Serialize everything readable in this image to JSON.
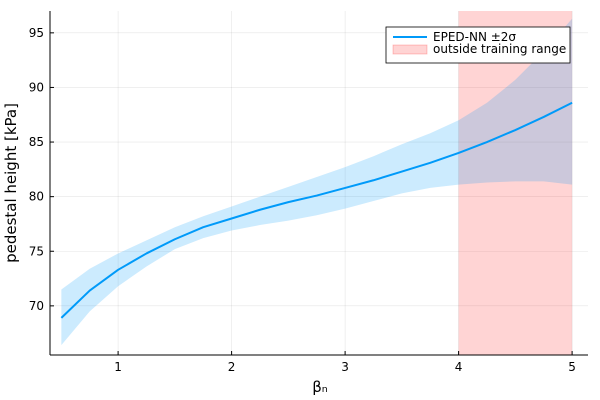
{
  "chart_data": {
    "type": "line",
    "title": "",
    "xlabel": "βₙ",
    "ylabel": "pedestal height [kPa]",
    "xlim": [
      0.4,
      5.14
    ],
    "ylim": [
      65.5,
      97.0
    ],
    "x_ticks": [
      1,
      2,
      3,
      4,
      5
    ],
    "y_ticks": [
      70,
      75,
      80,
      85,
      90,
      95
    ],
    "grid": true,
    "legend_position": "top-right",
    "series": [
      {
        "name": "EPED-NN ±2σ",
        "color": "#009af9",
        "band_color": "#009af9",
        "x": [
          0.5,
          0.75,
          1.0,
          1.25,
          1.5,
          1.75,
          2.0,
          2.25,
          2.5,
          2.75,
          3.0,
          3.25,
          3.5,
          3.75,
          4.0,
          4.25,
          4.5,
          4.75,
          5.0
        ],
        "y": [
          68.9,
          71.4,
          73.3,
          74.8,
          76.1,
          77.2,
          78.0,
          78.8,
          79.5,
          80.1,
          80.8,
          81.5,
          82.3,
          83.1,
          84.0,
          85.0,
          86.1,
          87.3,
          88.6
        ],
        "lower": [
          66.4,
          69.5,
          71.8,
          73.6,
          75.2,
          76.2,
          76.9,
          77.4,
          77.8,
          78.3,
          78.9,
          79.6,
          80.3,
          80.8,
          81.1,
          81.3,
          81.4,
          81.4,
          81.1
        ],
        "upper": [
          71.5,
          73.4,
          74.8,
          76.0,
          77.2,
          78.2,
          79.1,
          80.0,
          80.9,
          81.8,
          82.7,
          83.7,
          84.8,
          85.8,
          87.0,
          88.6,
          90.7,
          93.3,
          96.3
        ]
      }
    ],
    "shaded_regions": [
      {
        "name": "outside training range",
        "x_start": 4.0,
        "x_end": 5.0,
        "color": "#ff0000",
        "opacity": 0.17
      }
    ]
  }
}
